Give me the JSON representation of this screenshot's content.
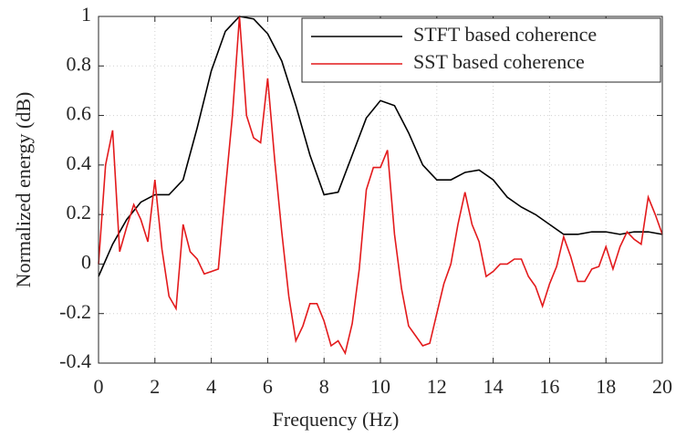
{
  "chart_data": {
    "type": "line",
    "xlabel": "Frequency (Hz)",
    "ylabel": "Normalized energy (dB)",
    "xlim": [
      0,
      20
    ],
    "ylim": [
      -0.4,
      1
    ],
    "xticks": [
      0,
      2,
      4,
      6,
      8,
      10,
      12,
      14,
      16,
      18,
      20
    ],
    "yticks": [
      -0.4,
      -0.2,
      0,
      0.2,
      0.4,
      0.6,
      0.8,
      1
    ],
    "grid": true,
    "legend": "upper right",
    "series": [
      {
        "name": "STFT based coherence",
        "color": "#000000",
        "x": [
          0,
          0.5,
          1,
          1.5,
          2,
          2.5,
          3,
          3.5,
          4,
          4.5,
          5,
          5.5,
          6,
          6.5,
          7,
          7.5,
          8,
          8.5,
          9,
          9.5,
          10,
          10.5,
          11,
          11.5,
          12,
          12.5,
          13,
          13.5,
          14,
          14.5,
          15,
          15.5,
          16,
          16.5,
          17,
          17.5,
          18,
          18.5,
          19,
          19.5,
          20
        ],
        "values": [
          -0.05,
          0.08,
          0.18,
          0.25,
          0.28,
          0.28,
          0.34,
          0.55,
          0.78,
          0.94,
          1.0,
          0.99,
          0.93,
          0.82,
          0.64,
          0.44,
          0.28,
          0.29,
          0.44,
          0.59,
          0.66,
          0.64,
          0.53,
          0.4,
          0.34,
          0.34,
          0.37,
          0.38,
          0.34,
          0.27,
          0.23,
          0.2,
          0.16,
          0.12,
          0.12,
          0.13,
          0.13,
          0.12,
          0.13,
          0.13,
          0.12
        ]
      },
      {
        "name": "SST based coherence",
        "color": "#e31a1c",
        "x": [
          0,
          0.25,
          0.5,
          0.75,
          1,
          1.25,
          1.5,
          1.75,
          2,
          2.25,
          2.5,
          2.75,
          3,
          3.25,
          3.5,
          3.75,
          4,
          4.25,
          4.5,
          4.75,
          5,
          5.25,
          5.5,
          5.75,
          6,
          6.25,
          6.5,
          6.75,
          7,
          7.25,
          7.5,
          7.75,
          8,
          8.25,
          8.5,
          8.75,
          9,
          9.25,
          9.5,
          9.75,
          10,
          10.25,
          10.5,
          10.75,
          11,
          11.25,
          11.5,
          11.75,
          12,
          12.25,
          12.5,
          12.75,
          13,
          13.25,
          13.5,
          13.75,
          14,
          14.25,
          14.5,
          14.75,
          15,
          15.25,
          15.5,
          15.75,
          16,
          16.25,
          16.5,
          16.75,
          17,
          17.25,
          17.5,
          17.75,
          18,
          18.25,
          18.5,
          18.75,
          19,
          19.25,
          19.5,
          19.75,
          20
        ],
        "values": [
          0.0,
          0.4,
          0.54,
          0.05,
          0.15,
          0.24,
          0.18,
          0.09,
          0.34,
          0.06,
          -0.13,
          -0.18,
          0.16,
          0.05,
          0.02,
          -0.04,
          -0.03,
          -0.02,
          0.3,
          0.6,
          1.0,
          0.6,
          0.51,
          0.49,
          0.75,
          0.42,
          0.13,
          -0.13,
          -0.31,
          -0.25,
          -0.16,
          -0.16,
          -0.23,
          -0.33,
          -0.31,
          -0.36,
          -0.24,
          -0.02,
          0.3,
          0.39,
          0.39,
          0.46,
          0.12,
          -0.1,
          -0.25,
          -0.29,
          -0.33,
          -0.32,
          -0.2,
          -0.08,
          0.0,
          0.16,
          0.29,
          0.16,
          0.09,
          -0.05,
          -0.03,
          0.0,
          0.0,
          0.02,
          0.02,
          -0.05,
          -0.09,
          -0.17,
          -0.08,
          -0.01,
          0.11,
          0.03,
          -0.07,
          -0.07,
          -0.02,
          -0.01,
          0.07,
          -0.02,
          0.07,
          0.13,
          0.1,
          0.08,
          0.27,
          0.2,
          0.12
        ]
      }
    ]
  }
}
